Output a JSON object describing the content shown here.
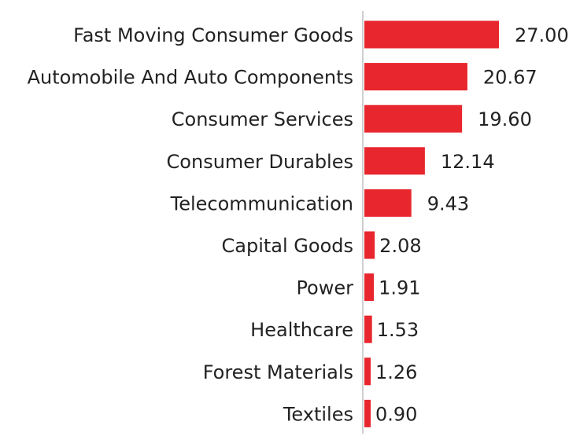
{
  "chart_data": {
    "type": "bar",
    "orientation": "horizontal",
    "title": "",
    "xlabel": "",
    "ylabel": "",
    "categories": [
      "Fast Moving Consumer Goods",
      "Automobile And Auto Components",
      "Consumer Services",
      "Consumer Durables",
      "Telecommunication",
      "Capital Goods",
      "Power",
      "Healthcare",
      "Forest Materials",
      "Textiles"
    ],
    "values": [
      27.0,
      20.67,
      19.6,
      12.14,
      9.43,
      2.08,
      1.91,
      1.53,
      1.26,
      0.9
    ],
    "value_labels": [
      "27.00",
      "20.67",
      "19.60",
      "12.14",
      "9.43",
      "2.08",
      "1.91",
      "1.53",
      "1.26",
      "0.90"
    ],
    "xlim": [
      0,
      27
    ],
    "grid": false,
    "legend": "none",
    "bar_color": "#e8262d",
    "axis_color": "#cfcfcf"
  }
}
